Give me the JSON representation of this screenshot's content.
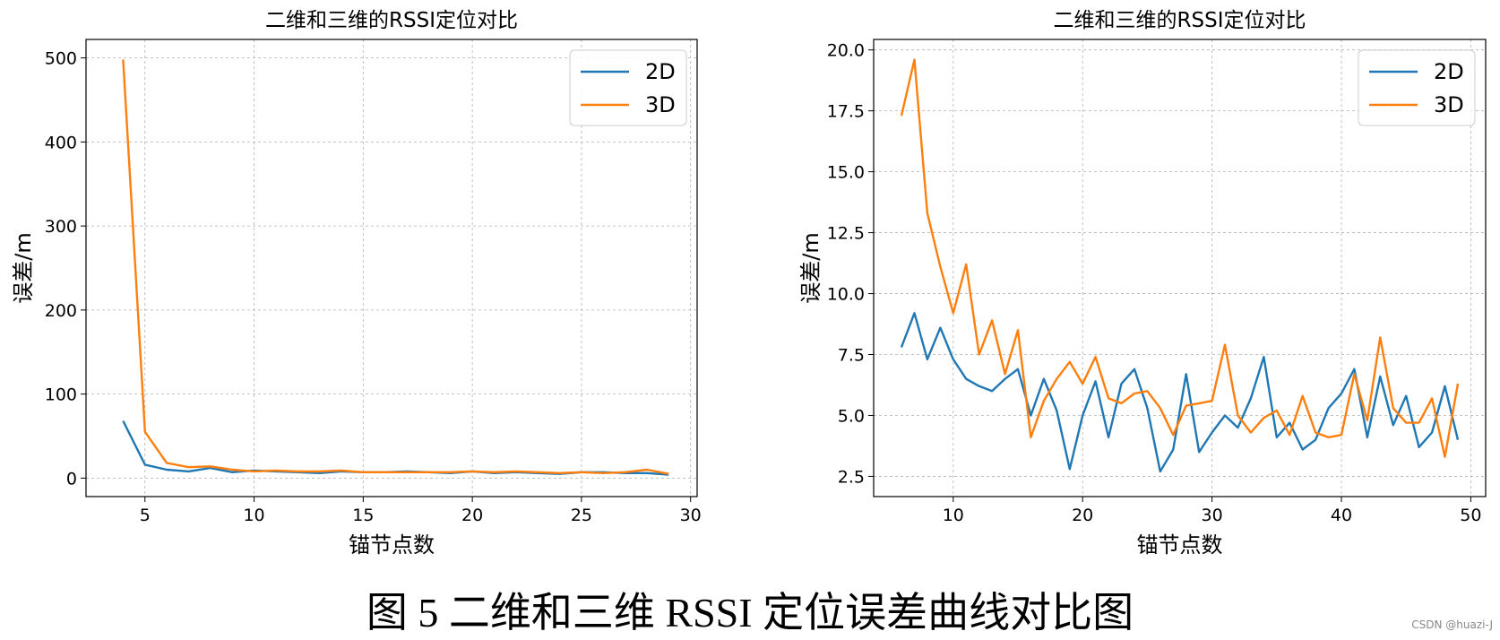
{
  "caption": "图 5  二维和三维 RSSI 定位误差曲线对比图",
  "credit": "CSDN @huazi-J",
  "chart_data": [
    {
      "type": "line",
      "title": "二维和三维的RSSI定位对比",
      "xlabel": "锚节点数",
      "ylabel": "误差/m",
      "xlim": [
        2.3,
        30.3
      ],
      "ylim": [
        -22,
        522
      ],
      "xticks": [
        5,
        10,
        15,
        20,
        25,
        30
      ],
      "yticks": [
        0,
        100,
        200,
        300,
        400,
        500
      ],
      "ytick_format": "int",
      "grid": true,
      "legend": "top-right",
      "series": [
        {
          "name": "2D",
          "color": "#1f77b4",
          "x": [
            4,
            5,
            6,
            7,
            8,
            9,
            10,
            11,
            12,
            13,
            14,
            15,
            16,
            17,
            18,
            19,
            20,
            21,
            22,
            23,
            24,
            25,
            26,
            27,
            28,
            29
          ],
          "y": [
            68,
            16,
            10,
            8,
            12,
            7,
            9,
            8,
            7,
            6,
            8,
            7,
            7,
            8,
            7,
            6,
            8,
            6,
            7,
            6,
            5,
            7,
            7,
            6,
            6,
            4
          ]
        },
        {
          "name": "3D",
          "color": "#ff7f0e",
          "x": [
            4,
            5,
            6,
            7,
            8,
            9,
            10,
            11,
            12,
            13,
            14,
            15,
            16,
            17,
            18,
            19,
            20,
            21,
            22,
            23,
            24,
            25,
            26,
            27,
            28,
            29
          ],
          "y": [
            498,
            55,
            18,
            13,
            14,
            10,
            8,
            9,
            8,
            8,
            9,
            7,
            7,
            7,
            7,
            7,
            8,
            7,
            8,
            7,
            6,
            7,
            6,
            7,
            10,
            5
          ]
        }
      ]
    },
    {
      "type": "line",
      "title": "二维和三维的RSSI定位对比",
      "xlabel": "锚节点数",
      "ylabel": "误差/m",
      "xlim": [
        3.85,
        51.15
      ],
      "ylim": [
        1.67,
        20.43
      ],
      "xticks": [
        10,
        20,
        30,
        40,
        50
      ],
      "yticks": [
        2.5,
        5.0,
        7.5,
        10.0,
        12.5,
        15.0,
        17.5,
        20.0
      ],
      "ytick_format": "1dp",
      "grid": true,
      "legend": "top-right",
      "series": [
        {
          "name": "2D",
          "color": "#1f77b4",
          "x": [
            6,
            7,
            8,
            9,
            10,
            11,
            12,
            13,
            14,
            15,
            16,
            17,
            18,
            19,
            20,
            21,
            22,
            23,
            24,
            25,
            26,
            27,
            28,
            29,
            30,
            31,
            32,
            33,
            34,
            35,
            36,
            37,
            38,
            39,
            40,
            41,
            42,
            43,
            44,
            45,
            46,
            47,
            48,
            49
          ],
          "y": [
            7.8,
            9.2,
            7.3,
            8.6,
            7.3,
            6.5,
            6.2,
            6.0,
            6.5,
            6.9,
            5.0,
            6.5,
            5.2,
            2.8,
            5.0,
            6.4,
            4.1,
            6.3,
            6.9,
            5.3,
            2.7,
            3.6,
            6.7,
            3.5,
            4.3,
            5.0,
            4.5,
            5.7,
            7.4,
            4.1,
            4.7,
            3.6,
            4.0,
            5.3,
            5.9,
            6.9,
            4.1,
            6.6,
            4.6,
            5.8,
            3.7,
            4.3,
            6.2,
            4.0
          ]
        },
        {
          "name": "3D",
          "color": "#ff7f0e",
          "x": [
            6,
            7,
            8,
            9,
            10,
            11,
            12,
            13,
            14,
            15,
            16,
            17,
            18,
            19,
            20,
            21,
            22,
            23,
            24,
            25,
            26,
            27,
            28,
            29,
            30,
            31,
            32,
            33,
            34,
            35,
            36,
            37,
            38,
            39,
            40,
            41,
            42,
            43,
            44,
            45,
            46,
            47,
            48,
            49
          ],
          "y": [
            17.3,
            19.6,
            13.3,
            11.1,
            9.2,
            11.2,
            7.5,
            8.9,
            6.7,
            8.5,
            4.1,
            5.6,
            6.5,
            7.2,
            6.3,
            7.4,
            5.7,
            5.5,
            5.9,
            6.0,
            5.3,
            4.2,
            5.4,
            5.5,
            5.6,
            7.9,
            5.0,
            4.3,
            4.9,
            5.2,
            4.2,
            5.8,
            4.3,
            4.1,
            4.2,
            6.7,
            4.8,
            8.2,
            5.3,
            4.7,
            4.7,
            5.7,
            3.3,
            6.3
          ]
        }
      ]
    }
  ]
}
